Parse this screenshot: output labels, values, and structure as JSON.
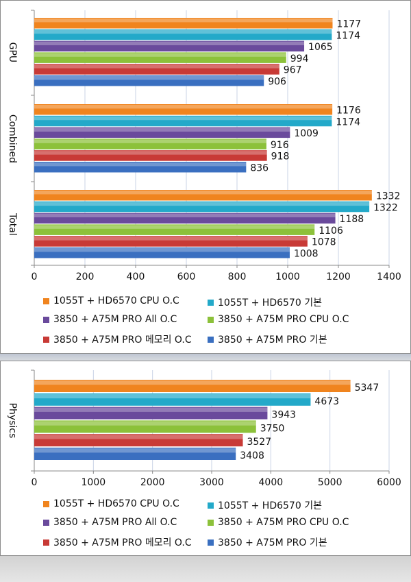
{
  "colors": {
    "orange": "#f0841e",
    "cyan": "#23a9c9",
    "purple": "#6a4a9c",
    "green": "#8cc13a",
    "red": "#c83a36",
    "blue": "#3a6fc0"
  },
  "legend": [
    "1055T + HD6570 CPU O.C",
    "1055T + HD6570 기본",
    "3850 + A75M PRO All O.C",
    "3850 + A75M PRO CPU O.C",
    "3850 + A75M PRO 메모리 O.C",
    "3850 + A75M PRO 기본"
  ],
  "chart_data": [
    {
      "type": "bar",
      "orientation": "horizontal",
      "categories": [
        "GPU",
        "Combined",
        "Total"
      ],
      "series": [
        {
          "name": "1055T + HD6570 CPU O.C",
          "values": [
            1177,
            1176,
            1332
          ]
        },
        {
          "name": "1055T + HD6570 기본",
          "values": [
            1174,
            1174,
            1322
          ]
        },
        {
          "name": "3850 + A75M PRO All O.C",
          "values": [
            1065,
            1009,
            1188
          ]
        },
        {
          "name": "3850 + A75M PRO CPU O.C",
          "values": [
            994,
            916,
            1106
          ]
        },
        {
          "name": "3850 + A75M PRO 메모리 O.C",
          "values": [
            967,
            918,
            1078
          ]
        },
        {
          "name": "3850 + A75M PRO 기본",
          "values": [
            906,
            836,
            1008
          ]
        }
      ],
      "xlim": [
        0,
        1400
      ],
      "xticks": [
        "0",
        "200",
        "400",
        "600",
        "800",
        "1000",
        "1200",
        "1400"
      ],
      "grid": true,
      "legend_position": "bottom"
    },
    {
      "type": "bar",
      "orientation": "horizontal",
      "categories": [
        "Physics"
      ],
      "series": [
        {
          "name": "1055T + HD6570 CPU O.C",
          "values": [
            5347
          ]
        },
        {
          "name": "1055T + HD6570 기본",
          "values": [
            4673
          ]
        },
        {
          "name": "3850 + A75M PRO All O.C",
          "values": [
            3943
          ]
        },
        {
          "name": "3850 + A75M PRO CPU O.C",
          "values": [
            3750
          ]
        },
        {
          "name": "3850 + A75M PRO 메모리 O.C",
          "values": [
            3527
          ]
        },
        {
          "name": "3850 + A75M PRO 기본",
          "values": [
            3408
          ]
        }
      ],
      "xlim": [
        0,
        6000
      ],
      "xticks": [
        "0",
        "1000",
        "2000",
        "3000",
        "4000",
        "5000",
        "6000"
      ],
      "grid": true,
      "legend_position": "bottom"
    }
  ]
}
